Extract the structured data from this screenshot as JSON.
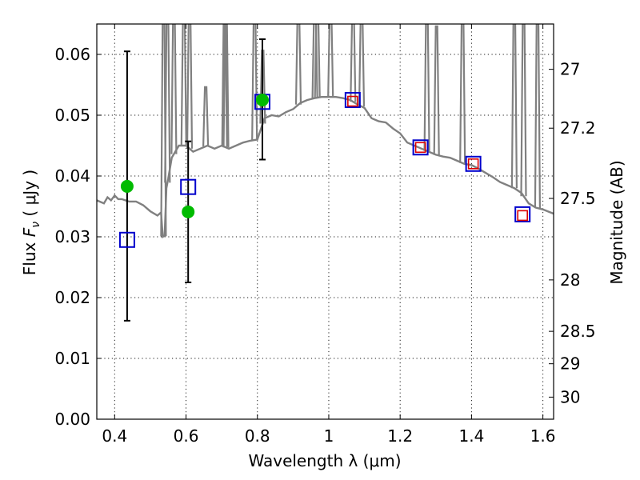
{
  "chart_data": {
    "type": "scatter",
    "title": "",
    "xlabel": "Wavelength  λ (μm)",
    "ylabel": "Flux  F_ν  ( μJy )",
    "ylabel_parts": {
      "prefix": "Flux  ",
      "symbol": "F",
      "subscript": "ν",
      "suffix": "  ( μJy )"
    },
    "y2label": "Magnitude (AB)",
    "xlim": [
      0.35,
      1.63
    ],
    "ylim": [
      0.0,
      0.065
    ],
    "grid": true,
    "x_ticks": [
      {
        "value": 0.4,
        "label": "0.4"
      },
      {
        "value": 0.6,
        "label": "0.6"
      },
      {
        "value": 0.8,
        "label": "0.8"
      },
      {
        "value": 1.0,
        "label": "1"
      },
      {
        "value": 1.2,
        "label": "1.2"
      },
      {
        "value": 1.4,
        "label": "1.4"
      },
      {
        "value": 1.6,
        "label": "1.6"
      }
    ],
    "y_ticks": [
      {
        "value": 0.0,
        "label": "0.00"
      },
      {
        "value": 0.01,
        "label": "0.01"
      },
      {
        "value": 0.02,
        "label": "0.02"
      },
      {
        "value": 0.03,
        "label": "0.03"
      },
      {
        "value": 0.04,
        "label": "0.04"
      },
      {
        "value": 0.05,
        "label": "0.05"
      },
      {
        "value": 0.06,
        "label": "0.06"
      }
    ],
    "y2_ticks": [
      {
        "value": 27.0,
        "label": "27"
      },
      {
        "value": 27.2,
        "label": "27.2"
      },
      {
        "value": 27.5,
        "label": "27.5"
      },
      {
        "value": 28.0,
        "label": "28"
      },
      {
        "value": 28.5,
        "label": "28.5"
      },
      {
        "value": 29.0,
        "label": "29"
      },
      {
        "value": 30.0,
        "label": "30"
      }
    ],
    "series": [
      {
        "name": "model spectrum",
        "kind": "line",
        "color": "#808080",
        "x": [
          0.35,
          0.37,
          0.38,
          0.39,
          0.4,
          0.41,
          0.42,
          0.43,
          0.44,
          0.46,
          0.48,
          0.5,
          0.52,
          0.53,
          0.535,
          0.54,
          0.545,
          0.55,
          0.56,
          0.57,
          0.58,
          0.6,
          0.62,
          0.64,
          0.66,
          0.68,
          0.7,
          0.72,
          0.74,
          0.76,
          0.78,
          0.8,
          0.82,
          0.84,
          0.86,
          0.88,
          0.9,
          0.92,
          0.94,
          0.96,
          0.98,
          1.0,
          1.02,
          1.04,
          1.06,
          1.08,
          1.1,
          1.12,
          1.14,
          1.16,
          1.18,
          1.2,
          1.22,
          1.24,
          1.26,
          1.28,
          1.3,
          1.32,
          1.34,
          1.36,
          1.38,
          1.4,
          1.42,
          1.44,
          1.46,
          1.48,
          1.5,
          1.52,
          1.54,
          1.56,
          1.58,
          1.6,
          1.63
        ],
        "y": [
          0.036,
          0.0355,
          0.0365,
          0.036,
          0.0368,
          0.0362,
          0.0362,
          0.036,
          0.0358,
          0.0358,
          0.0352,
          0.0342,
          0.0335,
          0.034,
          0.03,
          0.0302,
          0.038,
          0.0395,
          0.043,
          0.044,
          0.045,
          0.045,
          0.044,
          0.0445,
          0.045,
          0.0445,
          0.045,
          0.0445,
          0.045,
          0.0455,
          0.0458,
          0.046,
          0.0495,
          0.05,
          0.0498,
          0.0505,
          0.051,
          0.052,
          0.0525,
          0.0528,
          0.053,
          0.053,
          0.053,
          0.0528,
          0.0525,
          0.0518,
          0.0512,
          0.0495,
          0.049,
          0.0488,
          0.0478,
          0.047,
          0.0455,
          0.045,
          0.0445,
          0.044,
          0.0435,
          0.0432,
          0.043,
          0.0425,
          0.042,
          0.0418,
          0.0412,
          0.0405,
          0.0398,
          0.039,
          0.0385,
          0.038,
          0.0372,
          0.0355,
          0.0348,
          0.0345,
          0.0338
        ]
      },
      {
        "name": "emission lines",
        "kind": "spikes",
        "color": "#808080",
        "x": [
          0.537,
          0.548,
          0.566,
          0.594,
          0.61,
          0.655,
          0.708,
          0.712,
          0.792,
          0.815,
          0.915,
          0.961,
          0.968,
          1.005,
          1.068,
          1.092,
          1.275,
          1.302,
          1.375,
          1.52,
          1.546,
          1.585
        ],
        "y": [
          0.065,
          0.065,
          0.065,
          0.065,
          0.065,
          0.052,
          0.065,
          0.065,
          0.065,
          0.058,
          0.065,
          0.065,
          0.065,
          0.065,
          0.065,
          0.065,
          0.065,
          0.062,
          0.065,
          0.065,
          0.065,
          0.065
        ]
      },
      {
        "name": "observed (blue squares)",
        "kind": "marker",
        "marker": "square-open",
        "color": "#0000cc",
        "x": [
          0.435,
          0.606,
          0.814,
          1.067,
          1.257,
          1.405,
          1.543
        ],
        "y": [
          0.0295,
          0.0382,
          0.0522,
          0.0525,
          0.0447,
          0.042,
          0.0337
        ]
      },
      {
        "name": "model (red squares)",
        "kind": "marker",
        "marker": "square-open-small",
        "color": "#dd0000",
        "x": [
          1.067,
          1.257,
          1.405,
          1.543
        ],
        "y": [
          0.0523,
          0.0447,
          0.042,
          0.0335
        ]
      },
      {
        "name": "green points",
        "kind": "marker",
        "marker": "circle-filled",
        "color": "#00bb00",
        "x": [
          0.435,
          0.606,
          0.814
        ],
        "y": [
          0.0383,
          0.0341,
          0.0525
        ]
      },
      {
        "name": "error bars",
        "kind": "errorbar",
        "color": "#000000",
        "x": [
          0.435,
          0.606,
          0.814
        ],
        "low": [
          0.0162,
          0.0225,
          0.0427
        ],
        "high": [
          0.0605,
          0.0457,
          0.0625
        ]
      }
    ]
  }
}
